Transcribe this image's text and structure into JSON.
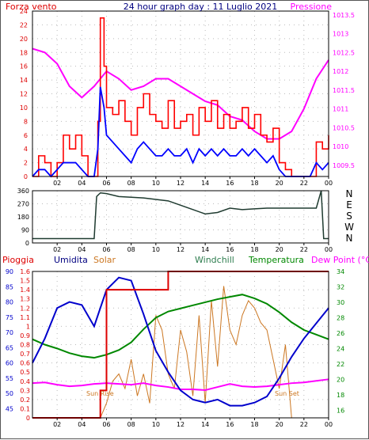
{
  "colors": {
    "wind_speed": "#ff0000",
    "wind_gust_avg": "#0000ff",
    "pressure": "#ff00ff",
    "wind_dir": "#1f3b30",
    "rain": "#dd0000",
    "humidity": "#0000cc",
    "solar": "#cc7722",
    "windchill": "#2e7d4f",
    "temperature": "#008800",
    "dew_point": "#ff00ff"
  },
  "panel1": {
    "title": "24 hour graph day : 11 Luglio 2021",
    "left_label": "Forza vento",
    "right_label": "Pressione",
    "left_ticks": [
      "0",
      "2",
      "4",
      "6",
      "8",
      "10",
      "12",
      "14",
      "16",
      "18",
      "20",
      "22",
      "24"
    ],
    "right_ticks": [
      "1009.5",
      "1010",
      "1010.5",
      "1011",
      "1011.5",
      "1012",
      "1012.5",
      "1013",
      "1013.5"
    ],
    "x_ticks": [
      "02",
      "04",
      "06",
      "08",
      "10",
      "12",
      "14",
      "16",
      "18",
      "20",
      "22",
      "00"
    ]
  },
  "panel2": {
    "left_ticks": [
      "0",
      "90",
      "180",
      "270",
      "360"
    ],
    "right_labels": [
      "N",
      "W",
      "S",
      "E",
      "N"
    ],
    "x_ticks": [
      "02",
      "04",
      "06",
      "08",
      "10",
      "12",
      "14",
      "16",
      "18",
      "20",
      "22",
      "00"
    ]
  },
  "panel3": {
    "labels": {
      "rain": "Pioggia",
      "humidity": "Umidita",
      "solar": "Solar",
      "windchill": "Windchill",
      "temperature": "Temperatura",
      "dew_point": "Dew Point (°C)"
    },
    "rain_ticks": [
      "0",
      "0.1",
      "0.2",
      "0.3",
      "0.4",
      "0.5",
      "0.6",
      "0.7",
      "0.8",
      "0.9",
      "1",
      "1.1",
      "1.2",
      "1.3",
      "1.4",
      "1.5",
      "1.6"
    ],
    "humidity_ticks": [
      "45",
      "50",
      "55",
      "60",
      "65",
      "70",
      "75",
      "80",
      "85",
      "90"
    ],
    "temp_ticks": [
      "16",
      "18",
      "20",
      "22",
      "24",
      "26",
      "28",
      "30",
      "32",
      "34"
    ],
    "x_ticks": [
      "02",
      "04",
      "06",
      "08",
      "10",
      "12",
      "14",
      "16",
      "18",
      "20",
      "22",
      "00"
    ],
    "sun_rise": "Sun Rise",
    "sun_set": "Sun Set"
  },
  "chart_data": [
    {
      "type": "line",
      "title": "24 hour graph day : 11 Luglio 2021",
      "x_unit": "hour",
      "ylim": [
        0,
        24
      ],
      "y2lim": [
        1009.2,
        1013.6
      ],
      "series": [
        {
          "name": "Forza vento",
          "axis": "left",
          "x": [
            0,
            0.5,
            1,
            1.5,
            2,
            2.5,
            3,
            3.5,
            4,
            4.5,
            5,
            5.3,
            5.5,
            5.8,
            6,
            6.5,
            7,
            7.5,
            8,
            8.5,
            9,
            9.5,
            10,
            10.5,
            11,
            11.5,
            12,
            12.5,
            13,
            13.5,
            14,
            14.5,
            15,
            15.5,
            16,
            16.5,
            17,
            17.5,
            18,
            18.5,
            19,
            19.5,
            20,
            20.5,
            21,
            21.5,
            22,
            22.5,
            23,
            23.5,
            24
          ],
          "values": [
            0,
            3,
            2,
            0,
            2,
            6,
            4,
            6,
            3,
            0,
            0,
            8,
            23,
            16,
            10,
            9,
            11,
            8,
            6,
            10,
            12,
            9,
            8,
            7,
            11,
            7,
            8,
            9,
            6,
            10,
            8,
            11,
            7,
            9,
            7,
            8,
            10,
            7,
            9,
            6,
            5,
            7,
            2,
            1,
            0,
            0,
            0,
            0,
            5,
            4,
            6
          ]
        },
        {
          "name": "",
          "axis": "left",
          "x": [
            0,
            0.5,
            1,
            1.5,
            2,
            2.5,
            3,
            3.5,
            4,
            4.5,
            5,
            5.3,
            5.5,
            5.8,
            6,
            6.5,
            7,
            7.5,
            8,
            8.5,
            9,
            9.5,
            10,
            10.5,
            11,
            11.5,
            12,
            12.5,
            13,
            13.5,
            14,
            14.5,
            15,
            15.5,
            16,
            16.5,
            17,
            17.5,
            18,
            18.5,
            19,
            19.5,
            20,
            20.5,
            21,
            21.5,
            22,
            22.5,
            23,
            23.5,
            24
          ],
          "values": [
            0,
            1,
            1,
            0,
            1,
            2,
            2,
            2,
            1,
            0,
            0,
            4,
            13,
            10,
            6,
            5,
            4,
            3,
            2,
            4,
            5,
            4,
            3,
            3,
            4,
            3,
            3,
            4,
            2,
            4,
            3,
            4,
            3,
            4,
            3,
            3,
            4,
            3,
            4,
            3,
            2,
            3,
            1,
            0,
            0,
            0,
            0,
            0,
            2,
            1,
            2
          ]
        },
        {
          "name": "Pressione",
          "axis": "right",
          "x": [
            0,
            1,
            2,
            3,
            4,
            5,
            6,
            7,
            8,
            9,
            10,
            11,
            12,
            13,
            14,
            15,
            16,
            17,
            18,
            19,
            20,
            21,
            22,
            23,
            24
          ],
          "values": [
            1012.6,
            1012.5,
            1012.2,
            1011.6,
            1011.3,
            1011.6,
            1012.0,
            1011.8,
            1011.5,
            1011.6,
            1011.8,
            1011.8,
            1011.6,
            1011.4,
            1011.2,
            1011.1,
            1010.8,
            1010.7,
            1010.4,
            1010.2,
            1010.2,
            1010.4,
            1011.0,
            1011.8,
            1012.3
          ]
        }
      ]
    },
    {
      "type": "line",
      "x_unit": "hour",
      "ylim": [
        0,
        360
      ],
      "series": [
        {
          "name": "",
          "x": [
            0,
            1,
            2,
            3,
            4,
            5,
            5.2,
            5.5,
            6,
            7,
            8,
            9,
            10,
            11,
            12,
            13,
            14,
            15,
            16,
            17,
            18,
            19,
            20,
            21,
            22,
            23,
            23.4,
            23.6,
            24
          ],
          "values": [
            30,
            30,
            30,
            30,
            30,
            30,
            320,
            345,
            340,
            320,
            315,
            310,
            300,
            290,
            260,
            230,
            200,
            210,
            240,
            230,
            235,
            240,
            240,
            240,
            240,
            240,
            360,
            30,
            30
          ]
        }
      ]
    },
    {
      "type": "line",
      "x_unit": "hour",
      "series": [
        {
          "name": "Pioggia",
          "x": [
            0,
            4,
            5.5,
            6,
            7,
            8,
            9,
            10,
            11,
            12,
            13,
            14,
            15,
            16,
            17,
            18,
            19,
            20,
            21,
            22,
            23,
            24
          ],
          "values": [
            0,
            0,
            0.3,
            1.4,
            1.4,
            1.4,
            1.4,
            1.4,
            1.6,
            1.6,
            1.6,
            1.6,
            1.6,
            1.6,
            1.6,
            1.6,
            1.6,
            1.6,
            1.6,
            1.6,
            1.6,
            1.6
          ]
        },
        {
          "name": "Umidita",
          "x": [
            0,
            1,
            2,
            3,
            4,
            5,
            6,
            7,
            8,
            9,
            10,
            11,
            12,
            13,
            14,
            15,
            16,
            17,
            18,
            19,
            20,
            21,
            22,
            23,
            24
          ],
          "values": [
            60,
            68,
            78,
            80,
            79,
            72,
            84,
            88,
            87,
            76,
            64,
            57,
            51,
            48,
            47,
            48,
            46,
            46,
            47,
            49,
            55,
            62,
            68,
            73,
            78
          ]
        },
        {
          "name": "Temperatura",
          "x": [
            0,
            1,
            2,
            3,
            4,
            5,
            6,
            7,
            8,
            9,
            10,
            11,
            12,
            13,
            14,
            15,
            16,
            17,
            18,
            19,
            20,
            21,
            22,
            23,
            24
          ],
          "values": [
            25.2,
            24.5,
            24,
            23.4,
            23,
            22.8,
            23.2,
            23.8,
            24.8,
            26.5,
            28.0,
            28.8,
            29.2,
            29.6,
            30.0,
            30.4,
            30.7,
            31.0,
            30.5,
            29.8,
            28.7,
            27.4,
            26.4,
            25.8,
            25.2
          ]
        },
        {
          "name": "Dew Point (°C)",
          "x": [
            0,
            1,
            2,
            3,
            4,
            5,
            6,
            7,
            8,
            9,
            10,
            11,
            12,
            13,
            14,
            15,
            16,
            17,
            18,
            19,
            20,
            21,
            22,
            23,
            24
          ],
          "values": [
            19.5,
            19.6,
            19.3,
            19.1,
            19.2,
            19.4,
            19.5,
            19.4,
            19.3,
            19.5,
            19.2,
            19.0,
            18.7,
            18.7,
            18.6,
            19.0,
            19.4,
            19.1,
            19.0,
            19.1,
            19.3,
            19.5,
            19.6,
            19.8,
            20.0
          ]
        },
        {
          "name": "Solar",
          "x": [
            0,
            4,
            5.5,
            6,
            6.5,
            7,
            7.5,
            8,
            8.5,
            9,
            9.5,
            10,
            10.5,
            11,
            11.5,
            12,
            12.5,
            13,
            13.5,
            14,
            14.5,
            15,
            15.5,
            16,
            16.5,
            17,
            17.5,
            18,
            18.5,
            19,
            19.5,
            20,
            20.5,
            21,
            22,
            24
          ],
          "values": [
            0,
            0,
            0,
            2,
            5,
            6,
            4,
            8,
            3,
            6,
            2,
            14,
            12,
            6,
            4,
            12,
            9,
            3,
            14,
            2,
            16,
            7,
            18,
            12,
            10,
            14,
            16,
            15,
            13,
            12,
            8,
            4,
            10,
            0,
            0,
            0
          ]
        }
      ]
    }
  ]
}
